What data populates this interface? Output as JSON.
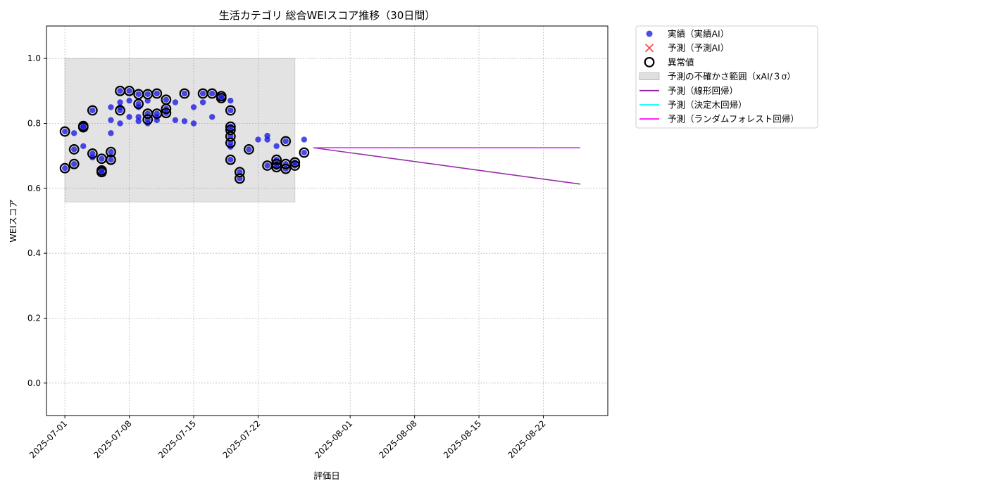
{
  "chart_data": {
    "type": "scatter",
    "title": "生活カテゴリ 総合WEIスコア推移（30日間）",
    "xlabel": "評価日",
    "ylabel": "WEIスコア",
    "xlim": [
      "2025-06-29",
      "2025-08-29"
    ],
    "ylim": [
      -0.1,
      1.1
    ],
    "grid": true,
    "legend_position": "outside top-right",
    "x_ticks": [
      "2025-07-01",
      "2025-07-08",
      "2025-07-15",
      "2025-07-22",
      "2025-08-01",
      "2025-08-08",
      "2025-08-15",
      "2025-08-22"
    ],
    "y_ticks": [
      0.0,
      0.2,
      0.4,
      0.6,
      0.8,
      1.0
    ],
    "y_tick_labels": [
      "0.0",
      "0.2",
      "0.4",
      "0.6",
      "0.8",
      "1.0"
    ],
    "legend": [
      {
        "label": "実績（実績AI）",
        "kind": "dot",
        "color": "#1010e0"
      },
      {
        "label": "予測（予測AI）",
        "kind": "cross",
        "color": "#ff2a2a"
      },
      {
        "label": "異常値",
        "kind": "ring",
        "color": "#000000"
      },
      {
        "label": "予測の不確かさ範囲（xAI/３σ）",
        "kind": "band",
        "color": "#d9d9d9"
      },
      {
        "label": "予測（線形回帰）",
        "kind": "line",
        "color": "#8b1a9c"
      },
      {
        "label": "予測（決定木回帰）",
        "kind": "line",
        "color": "#00ffff"
      },
      {
        "label": "予測（ランダムフォレスト回帰）",
        "kind": "line",
        "color": "#ff00ff"
      }
    ],
    "uncertainty_band": {
      "x": [
        "2025-07-01",
        "2025-07-26"
      ],
      "y": [
        0.558,
        1.0
      ]
    },
    "actual": [
      [
        "2025-07-01",
        0.662
      ],
      [
        "2025-07-01",
        0.775
      ],
      [
        "2025-07-02",
        0.675
      ],
      [
        "2025-07-02",
        0.72
      ],
      [
        "2025-07-02",
        0.77
      ],
      [
        "2025-07-03",
        0.73
      ],
      [
        "2025-07-03",
        0.792
      ],
      [
        "2025-07-03",
        0.788
      ],
      [
        "2025-07-04",
        0.84
      ],
      [
        "2025-07-04",
        0.707
      ],
      [
        "2025-07-04",
        0.695
      ],
      [
        "2025-07-05",
        0.691
      ],
      [
        "2025-07-05",
        0.655
      ],
      [
        "2025-07-05",
        0.65
      ],
      [
        "2025-07-06",
        0.77
      ],
      [
        "2025-07-06",
        0.712
      ],
      [
        "2025-07-06",
        0.688
      ],
      [
        "2025-07-06",
        0.85
      ],
      [
        "2025-07-06",
        0.81
      ],
      [
        "2025-07-07",
        0.8
      ],
      [
        "2025-07-07",
        0.9
      ],
      [
        "2025-07-07",
        0.85
      ],
      [
        "2025-07-07",
        0.84
      ],
      [
        "2025-07-07",
        0.865
      ],
      [
        "2025-07-08",
        0.9
      ],
      [
        "2025-07-08",
        0.82
      ],
      [
        "2025-07-08",
        0.87
      ],
      [
        "2025-07-09",
        0.86
      ],
      [
        "2025-07-09",
        0.807
      ],
      [
        "2025-07-09",
        0.89
      ],
      [
        "2025-07-09",
        0.85
      ],
      [
        "2025-07-09",
        0.82
      ],
      [
        "2025-07-10",
        0.89
      ],
      [
        "2025-07-10",
        0.87
      ],
      [
        "2025-07-10",
        0.812
      ],
      [
        "2025-07-10",
        0.83
      ],
      [
        "2025-07-10",
        0.8
      ],
      [
        "2025-07-11",
        0.82
      ],
      [
        "2025-07-11",
        0.83
      ],
      [
        "2025-07-11",
        0.81
      ],
      [
        "2025-07-11",
        0.892
      ],
      [
        "2025-07-12",
        0.873
      ],
      [
        "2025-07-12",
        0.845
      ],
      [
        "2025-07-12",
        0.832
      ],
      [
        "2025-07-13",
        0.81
      ],
      [
        "2025-07-13",
        0.865
      ],
      [
        "2025-07-14",
        0.892
      ],
      [
        "2025-07-14",
        0.807
      ],
      [
        "2025-07-15",
        0.85
      ],
      [
        "2025-07-15",
        0.8
      ],
      [
        "2025-07-16",
        0.892
      ],
      [
        "2025-07-16",
        0.865
      ],
      [
        "2025-07-17",
        0.892
      ],
      [
        "2025-07-17",
        0.82
      ],
      [
        "2025-07-18",
        0.884
      ],
      [
        "2025-07-18",
        0.878
      ],
      [
        "2025-07-19",
        0.87
      ],
      [
        "2025-07-19",
        0.84
      ],
      [
        "2025-07-19",
        0.79
      ],
      [
        "2025-07-19",
        0.78
      ],
      [
        "2025-07-19",
        0.76
      ],
      [
        "2025-07-19",
        0.74
      ],
      [
        "2025-07-19",
        0.728
      ],
      [
        "2025-07-19",
        0.688
      ],
      [
        "2025-07-20",
        0.65
      ],
      [
        "2025-07-20",
        0.63
      ],
      [
        "2025-07-21",
        0.72
      ],
      [
        "2025-07-22",
        0.75
      ],
      [
        "2025-07-23",
        0.762
      ],
      [
        "2025-07-23",
        0.75
      ],
      [
        "2025-07-23",
        0.67
      ],
      [
        "2025-07-24",
        0.73
      ],
      [
        "2025-07-24",
        0.688
      ],
      [
        "2025-07-24",
        0.675
      ],
      [
        "2025-07-24",
        0.665
      ],
      [
        "2025-07-25",
        0.745
      ],
      [
        "2025-07-25",
        0.675
      ],
      [
        "2025-07-25",
        0.66
      ],
      [
        "2025-07-26",
        0.67
      ],
      [
        "2025-07-26",
        0.68
      ],
      [
        "2025-07-27",
        0.75
      ],
      [
        "2025-07-27",
        0.71
      ]
    ],
    "anomalies": [
      [
        "2025-07-01",
        0.662
      ],
      [
        "2025-07-01",
        0.775
      ],
      [
        "2025-07-02",
        0.675
      ],
      [
        "2025-07-02",
        0.72
      ],
      [
        "2025-07-03",
        0.792
      ],
      [
        "2025-07-03",
        0.788
      ],
      [
        "2025-07-04",
        0.84
      ],
      [
        "2025-07-04",
        0.707
      ],
      [
        "2025-07-05",
        0.691
      ],
      [
        "2025-07-05",
        0.655
      ],
      [
        "2025-07-05",
        0.65
      ],
      [
        "2025-07-06",
        0.712
      ],
      [
        "2025-07-06",
        0.688
      ],
      [
        "2025-07-07",
        0.9
      ],
      [
        "2025-07-07",
        0.84
      ],
      [
        "2025-07-08",
        0.9
      ],
      [
        "2025-07-09",
        0.86
      ],
      [
        "2025-07-09",
        0.89
      ],
      [
        "2025-07-10",
        0.89
      ],
      [
        "2025-07-10",
        0.812
      ],
      [
        "2025-07-10",
        0.83
      ],
      [
        "2025-07-11",
        0.83
      ],
      [
        "2025-07-11",
        0.892
      ],
      [
        "2025-07-12",
        0.873
      ],
      [
        "2025-07-12",
        0.845
      ],
      [
        "2025-07-12",
        0.832
      ],
      [
        "2025-07-14",
        0.892
      ],
      [
        "2025-07-16",
        0.892
      ],
      [
        "2025-07-17",
        0.892
      ],
      [
        "2025-07-18",
        0.884
      ],
      [
        "2025-07-18",
        0.878
      ],
      [
        "2025-07-19",
        0.84
      ],
      [
        "2025-07-19",
        0.79
      ],
      [
        "2025-07-19",
        0.78
      ],
      [
        "2025-07-19",
        0.76
      ],
      [
        "2025-07-19",
        0.74
      ],
      [
        "2025-07-19",
        0.688
      ],
      [
        "2025-07-20",
        0.65
      ],
      [
        "2025-07-20",
        0.63
      ],
      [
        "2025-07-21",
        0.72
      ],
      [
        "2025-07-23",
        0.67
      ],
      [
        "2025-07-24",
        0.688
      ],
      [
        "2025-07-24",
        0.675
      ],
      [
        "2025-07-24",
        0.665
      ],
      [
        "2025-07-25",
        0.745
      ],
      [
        "2025-07-25",
        0.675
      ],
      [
        "2025-07-25",
        0.66
      ],
      [
        "2025-07-26",
        0.67
      ],
      [
        "2025-07-26",
        0.68
      ],
      [
        "2025-07-27",
        0.71
      ]
    ],
    "forecast_lines": [
      {
        "name": "予測（線形回帰）",
        "color": "#8b1a9c",
        "points": [
          [
            "2025-07-28",
            0.725
          ],
          [
            "2025-08-26",
            0.613
          ]
        ]
      },
      {
        "name": "予測（決定木回帰）",
        "color": "#00ffff",
        "points": [
          [
            "2025-07-28",
            0.725
          ],
          [
            "2025-08-26",
            0.725
          ]
        ]
      },
      {
        "name": "予測（ランダムフォレスト回帰）",
        "color": "#ff00ff",
        "points": [
          [
            "2025-07-28",
            0.725
          ],
          [
            "2025-08-26",
            0.725
          ]
        ]
      }
    ]
  }
}
